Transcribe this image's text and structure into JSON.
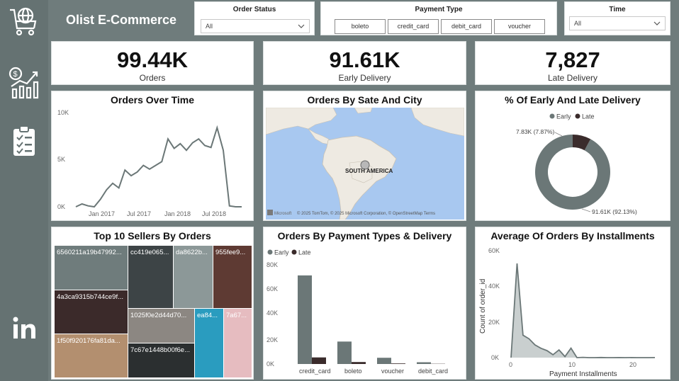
{
  "app": {
    "title": "Olist E-Commerce"
  },
  "sidebar": {
    "icons": [
      "cart-globe-icon",
      "finance-chart-icon",
      "clipboard-checklist-icon",
      "linkedin-icon"
    ]
  },
  "filters": {
    "order_status": {
      "label": "Order Status",
      "value": "All"
    },
    "payment_type": {
      "label": "Payment Type",
      "options": [
        "boleto",
        "credit_card",
        "debit_card",
        "voucher"
      ]
    },
    "time": {
      "label": "Time",
      "value": "All"
    }
  },
  "kpis": {
    "orders": {
      "value": "99.44K",
      "label": "Orders"
    },
    "early": {
      "value": "91.61K",
      "label": "Early Delivery"
    },
    "late": {
      "value": "7,827",
      "label": "Late Delivery"
    }
  },
  "colors": {
    "early": "#6b7777",
    "late": "#3a2b2b",
    "accent": "#6b7777"
  },
  "orders_over_time": {
    "title": "Orders Over Time",
    "y_ticks": [
      "10K",
      "5K",
      "0K"
    ],
    "x_ticks": [
      "Jan 2017",
      "Jul 2017",
      "Jan 2018",
      "Jul 2018"
    ],
    "chart_data": {
      "type": "line",
      "y_max": 10000,
      "values": [
        0,
        300,
        100,
        0,
        800,
        1800,
        2500,
        2000,
        3900,
        3300,
        3700,
        4400,
        4000,
        4400,
        4800,
        7200,
        6200,
        6700,
        6000,
        6800,
        7200,
        6500,
        6300,
        8400,
        6000,
        100,
        0,
        0
      ]
    }
  },
  "map": {
    "title": "Orders By Sate And City",
    "label": "SOUTH AMERICA",
    "attribution": "© 2025 TomTom, © 2025 Microsoft Corporation, © OpenStreetMap  Terms",
    "brand": "Microsoft"
  },
  "donut": {
    "title": "% Of Early And Late Delivery",
    "legend": [
      "Early",
      "Late"
    ],
    "late_label": "7.83K (7.87%)",
    "early_label": "91.61K (92.13%)",
    "chart_data": {
      "type": "pie",
      "values": [
        91610,
        7830
      ],
      "labels": [
        "Early",
        "Late"
      ]
    }
  },
  "treemap": {
    "title": "Top 10 Sellers By Orders",
    "items": [
      {
        "label": "6560211a19b47992...",
        "color": "#6f7c7c"
      },
      {
        "label": "4a3ca9315b744ce9f...",
        "color": "#3b2a2a"
      },
      {
        "label": "1f50f920176fa81da...",
        "color": "#b38f6f"
      },
      {
        "label": "cc419e065...",
        "color": "#3d4446"
      },
      {
        "label": "da8622b...",
        "color": "#8c9898"
      },
      {
        "label": "955fee9...",
        "color": "#5e3a33"
      },
      {
        "label": "1025f0e2d44d70...",
        "color": "#8c8782"
      },
      {
        "label": "ea84...",
        "color": "#2a9cbf"
      },
      {
        "label": "7a67...",
        "color": "#e6bcc0"
      },
      {
        "label": "7c67e1448b00f6e...",
        "color": "#2b2f30"
      }
    ]
  },
  "payment_chart": {
    "title": "Orders By Payment Types & Delivery",
    "legend": [
      "Early",
      "Late"
    ],
    "y_ticks": [
      "80K",
      "60K",
      "40K",
      "20K",
      "0K"
    ],
    "chart_data": {
      "type": "bar",
      "categories": [
        "credit_card",
        "boleto",
        "voucher",
        "debit_card"
      ],
      "series": [
        {
          "name": "Early",
          "values": [
            71000,
            18000,
            5000,
            1400
          ]
        },
        {
          "name": "Late",
          "values": [
            5300,
            1600,
            450,
            150
          ]
        }
      ],
      "ylim": [
        0,
        80000
      ]
    }
  },
  "installments_chart": {
    "title": "Average Of Orders By Installments",
    "ylabel": "Count of order_id",
    "xlabel": "Payment Installments",
    "y_ticks": [
      "60K",
      "40K",
      "20K",
      "0K"
    ],
    "x_ticks": [
      "0",
      "10",
      "20"
    ],
    "chart_data": {
      "type": "area",
      "x": [
        0,
        1,
        2,
        3,
        4,
        5,
        6,
        7,
        8,
        9,
        10,
        11,
        12,
        13,
        14,
        15,
        16,
        17,
        18,
        19,
        20,
        21,
        22,
        23,
        24
      ],
      "values": [
        0,
        52500,
        12500,
        10500,
        7100,
        5200,
        3900,
        1600,
        4300,
        600,
        5300,
        0,
        150,
        10,
        10,
        80,
        10,
        10,
        30,
        0,
        20,
        0,
        0,
        0,
        20
      ],
      "ylim": [
        0,
        60000
      ],
      "xlim": [
        0,
        24
      ]
    }
  }
}
